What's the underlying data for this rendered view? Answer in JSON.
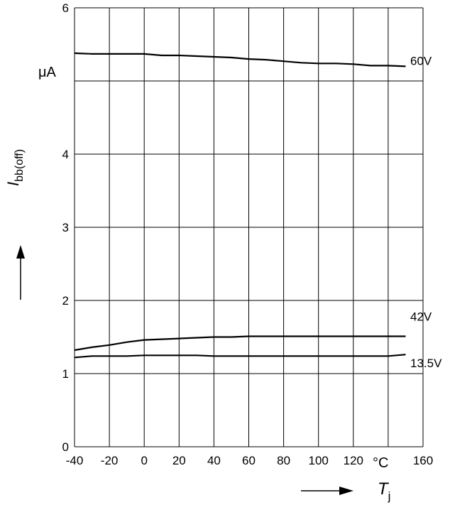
{
  "chart_data": {
    "type": "line",
    "xlabel": "T",
    "xlabel_sub": "j",
    "ylabel": "I",
    "ylabel_sub": "bb(off)",
    "x_unit": "°C",
    "y_unit": "μA",
    "xlim": [
      -40,
      160
    ],
    "ylim": [
      0,
      6
    ],
    "x_ticks": [
      "-40",
      "-20",
      "0",
      "20",
      "40",
      "60",
      "80",
      "100",
      "120",
      "160"
    ],
    "y_ticks": [
      "0",
      "1",
      "2",
      "3",
      "4",
      "6"
    ],
    "grid": true,
    "series": [
      {
        "name": "60V",
        "x": [
          -40,
          -30,
          -20,
          -10,
          0,
          10,
          20,
          30,
          40,
          50,
          60,
          70,
          80,
          90,
          100,
          110,
          120,
          130,
          140,
          150
        ],
        "y": [
          5.38,
          5.37,
          5.37,
          5.37,
          5.37,
          5.35,
          5.35,
          5.34,
          5.33,
          5.32,
          5.3,
          5.29,
          5.27,
          5.25,
          5.24,
          5.24,
          5.23,
          5.21,
          5.21,
          5.2
        ]
      },
      {
        "name": "42V",
        "x": [
          -40,
          -30,
          -20,
          -10,
          0,
          10,
          20,
          30,
          40,
          50,
          60,
          70,
          80,
          90,
          100,
          110,
          120,
          130,
          140,
          150
        ],
        "y": [
          1.32,
          1.36,
          1.39,
          1.43,
          1.46,
          1.47,
          1.48,
          1.49,
          1.5,
          1.5,
          1.51,
          1.51,
          1.51,
          1.51,
          1.51,
          1.51,
          1.51,
          1.51,
          1.51,
          1.51
        ]
      },
      {
        "name": "13.5V",
        "x": [
          -40,
          -30,
          -20,
          -10,
          0,
          10,
          20,
          30,
          40,
          50,
          60,
          70,
          80,
          90,
          100,
          110,
          120,
          130,
          140,
          150
        ],
        "y": [
          1.22,
          1.24,
          1.24,
          1.24,
          1.25,
          1.25,
          1.25,
          1.25,
          1.24,
          1.24,
          1.24,
          1.24,
          1.24,
          1.24,
          1.24,
          1.24,
          1.24,
          1.24,
          1.24,
          1.26
        ]
      }
    ]
  }
}
